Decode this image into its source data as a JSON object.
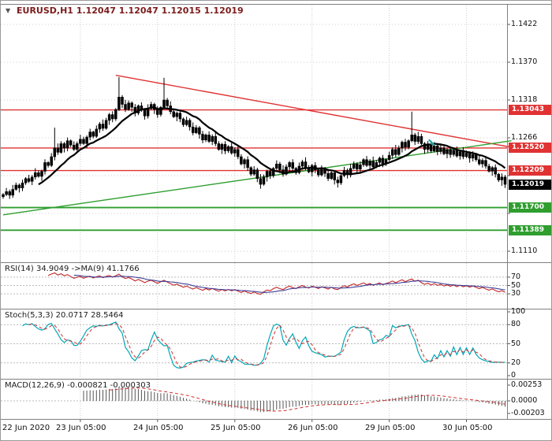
{
  "header": {
    "dropdown_icon": "▼",
    "symbol": "EURUSD,H1",
    "quotes": "1.12047 1.12047 1.12015 1.12019"
  },
  "colors": {
    "candle": "#000000",
    "ma": "#000000",
    "resistance": "#e03232",
    "support": "#2f9e2f",
    "current_tag": "#000000",
    "rsi": "#c22727",
    "rsi_ma": "#3c3c96",
    "stoch_k": "#00a8b8",
    "stoch_d": "#d03030",
    "macd_hist": "#555555",
    "macd_signal": "#d03030",
    "grid": "#cccccc",
    "panel_border": "#808080",
    "text": "#111111",
    "arrow": "#20a5a5"
  },
  "chart_data": {
    "type": "candlestick",
    "symbol": "EURUSD",
    "timeframe": "H1",
    "x_labels": [
      {
        "text": "22 Jun 2020",
        "bar": 0
      },
      {
        "text": "23 Jun 05:00",
        "bar": 24
      },
      {
        "text": "24 Jun 05:00",
        "bar": 48
      },
      {
        "text": "25 Jun 05:00",
        "bar": 72
      },
      {
        "text": "26 Jun 05:00",
        "bar": 96
      },
      {
        "text": "29 Jun 05:00",
        "bar": 120
      },
      {
        "text": "30 Jun 05:00",
        "bar": 144
      }
    ],
    "main": {
      "range": {
        "pmax": 1.1448,
        "pmin": 1.1097
      },
      "price_ticks": [
        {
          "v": 1.1422,
          "t": "1.1422"
        },
        {
          "v": 1.137,
          "t": "1.1370"
        },
        {
          "v": 1.1318,
          "t": "1.1318"
        },
        {
          "v": 1.1266,
          "t": "1.1266"
        },
        {
          "v": 1.1214,
          "t": "1.1214"
        },
        {
          "v": 1.1162,
          "t": "1.1162"
        },
        {
          "v": 1.111,
          "t": "1.1110"
        }
      ],
      "open_first": 1.1185,
      "closes": [
        1.1188,
        1.1192,
        1.1187,
        1.1195,
        1.1201,
        1.1197,
        1.1204,
        1.121,
        1.1206,
        1.1212,
        1.1218,
        1.1213,
        1.122,
        1.1232,
        1.1228,
        1.124,
        1.1252,
        1.1246,
        1.1258,
        1.1252,
        1.1262,
        1.1256,
        1.125,
        1.1258,
        1.1264,
        1.1258,
        1.1267,
        1.1274,
        1.1268,
        1.1278,
        1.1285,
        1.1279,
        1.129,
        1.1298,
        1.1292,
        1.1305,
        1.1322,
        1.1312,
        1.1305,
        1.1314,
        1.1308,
        1.13,
        1.131,
        1.1304,
        1.1296,
        1.1306,
        1.1312,
        1.1305,
        1.1298,
        1.1308,
        1.1318,
        1.131,
        1.1302,
        1.1295,
        1.13,
        1.1292,
        1.1284,
        1.129,
        1.1281,
        1.1273,
        1.128,
        1.1271,
        1.1263,
        1.127,
        1.1261,
        1.1268,
        1.1258,
        1.125,
        1.1257,
        1.1248,
        1.1254,
        1.1245,
        1.125,
        1.124,
        1.123,
        1.1236,
        1.1225,
        1.1216,
        1.1222,
        1.121,
        1.1202,
        1.1212,
        1.122,
        1.1214,
        1.1224,
        1.123,
        1.1222,
        1.1216,
        1.1226,
        1.1232,
        1.1224,
        1.1218,
        1.1227,
        1.1233,
        1.1225,
        1.1219,
        1.1228,
        1.1222,
        1.1215,
        1.1223,
        1.1217,
        1.121,
        1.1218,
        1.1208,
        1.1204,
        1.1214,
        1.1221,
        1.1215,
        1.1224,
        1.123,
        1.1223,
        1.1229,
        1.1236,
        1.1228,
        1.1234,
        1.1226,
        1.1232,
        1.1238,
        1.123,
        1.1236,
        1.1242,
        1.125,
        1.1243,
        1.1252,
        1.126,
        1.1253,
        1.1262,
        1.127,
        1.1261,
        1.1268,
        1.1258,
        1.125,
        1.1257,
        1.1248,
        1.1255,
        1.1247,
        1.1252,
        1.1244,
        1.125,
        1.1243,
        1.1249,
        1.1241,
        1.1247,
        1.124,
        1.1245,
        1.1238,
        1.1243,
        1.1236,
        1.123,
        1.1235,
        1.1227,
        1.122,
        1.1225,
        1.1216,
        1.1208,
        1.1212,
        1.12019
      ],
      "wick_pattern": [
        0.00018,
        0.0005,
        0.00028,
        0.00062,
        0.00035,
        0.00022,
        0.00045
      ],
      "spikes": {
        "16": {
          "high": 1.128
        },
        "36": {
          "high": 1.13495
        },
        "50": {
          "high": 1.13485
        },
        "80": {
          "low": 1.1196
        },
        "104": {
          "low": 1.11975
        },
        "127": {
          "high": 1.1302
        },
        "155": {
          "low": 1.12
        }
      },
      "ma_period": 12,
      "levels": [
        {
          "label": "1.13043",
          "price": 1.13043,
          "kind": "resistance"
        },
        {
          "label": "1.12520",
          "price": 1.1252,
          "kind": "resistance"
        },
        {
          "label": "1.12209",
          "price": 1.12209,
          "kind": "resistance"
        },
        {
          "label": "1.11700",
          "price": 1.117,
          "kind": "support"
        },
        {
          "label": "1.11389",
          "price": 1.11389,
          "kind": "support"
        }
      ],
      "current": {
        "label": "1.12019",
        "price": 1.12019
      },
      "trendlines": [
        {
          "bar1": 35,
          "p1": 1.1352,
          "bar2": 158,
          "p2": 1.1253,
          "kind": "resistance"
        },
        {
          "bar1": 0,
          "p1": 1.116,
          "bar2": 158,
          "p2": 1.1262,
          "kind": "support"
        }
      ],
      "arrow": {
        "bar": 134,
        "price": 1.1256
      }
    },
    "rsi": {
      "label": "RSI(14) 34.9049  ->MA(9) 41.1766",
      "period": 14,
      "ma_period": 9,
      "ticks": [
        {
          "v": 70,
          "t": "70"
        },
        {
          "v": 50,
          "t": "50"
        },
        {
          "v": 30,
          "t": "30"
        }
      ],
      "levels": [
        70,
        50,
        30
      ]
    },
    "stoch": {
      "label": "Stoch(5,3,3) 20.0717 28.5464",
      "k_period": 5,
      "slowing": 3,
      "d_period": 3,
      "ticks": [
        {
          "v": 100,
          "t": "100"
        },
        {
          "v": 80,
          "t": "80"
        },
        {
          "v": 50,
          "t": "50"
        },
        {
          "v": 20,
          "t": "20"
        },
        {
          "v": 0,
          "t": "0"
        }
      ],
      "levels": [
        80,
        50,
        20
      ]
    },
    "macd": {
      "label": "MACD(12,26,9) -0.000821 -0.000303",
      "fast": 12,
      "slow": 26,
      "signal": 9,
      "ticks": [
        {
          "v": 0.00253,
          "t": "0.00253"
        },
        {
          "v": 0,
          "t": "0.0000"
        },
        {
          "v": -0.00203,
          "t": "-0.00203"
        }
      ]
    }
  }
}
